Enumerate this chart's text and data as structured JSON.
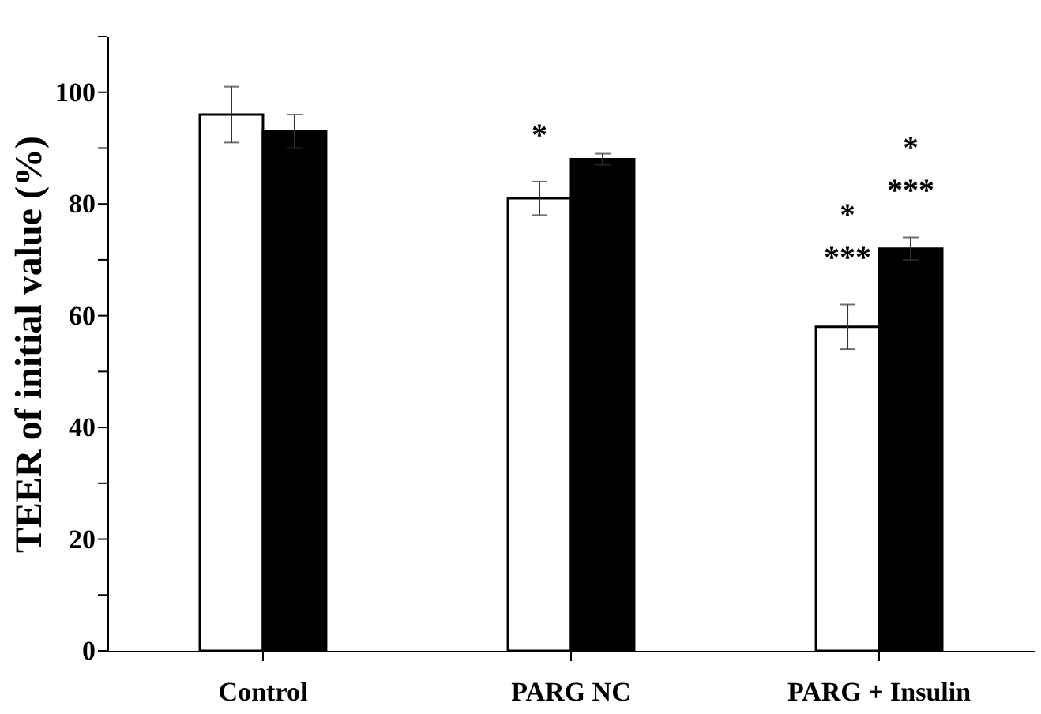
{
  "chart_data": {
    "type": "bar",
    "ylabel": "TEER of initial value (%)",
    "categories": [
      "Control",
      "PARG NC",
      "PARG + Insulin"
    ],
    "series": [
      {
        "color": "#ffffff",
        "values": [
          96,
          81,
          58
        ],
        "errors": [
          5,
          3,
          4
        ]
      },
      {
        "color": "#000000",
        "values": [
          93,
          88,
          72
        ],
        "errors": [
          3,
          1,
          2
        ]
      }
    ],
    "ylim": [
      0,
      110
    ],
    "yticks": [
      0,
      {
        "value": 10,
        "label": null
      },
      20,
      {
        "value": 30,
        "label": null
      },
      40,
      {
        "value": 50,
        "label": null
      },
      60,
      {
        "value": 70,
        "label": null
      },
      80,
      {
        "value": 90,
        "label": null
      },
      100,
      {
        "value": 110,
        "label": null
      }
    ],
    "annotations": [
      {
        "text": "*",
        "x": "PARG NC",
        "y": 81
      },
      {
        "text": "***",
        "x": "PARG + Insulin",
        "y": 58
      },
      "*",
      {
        "text": "***",
        "x": "PARG + Insulin",
        "y": 72
      },
      "*"
    ]
  }
}
